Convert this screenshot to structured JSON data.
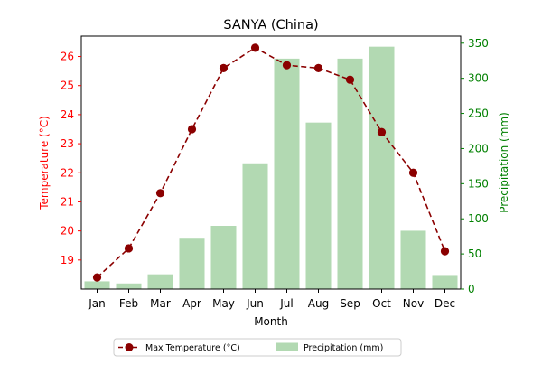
{
  "chart_data": {
    "type": "bar+line",
    "title": "SANYA (China)",
    "xlabel": "Month",
    "categories": [
      "Jan",
      "Feb",
      "Mar",
      "Apr",
      "May",
      "Jun",
      "Jul",
      "Aug",
      "Sep",
      "Oct",
      "Nov",
      "Dec"
    ],
    "y_left": {
      "label": "Temperature (°C)",
      "color": "#ff0000",
      "range": [
        18.0,
        26.7
      ],
      "ticks": [
        19,
        20,
        21,
        22,
        23,
        24,
        25,
        26
      ]
    },
    "y_right": {
      "label": "Precipitation (mm)",
      "color": "#008000",
      "range": [
        0,
        360
      ],
      "ticks": [
        0,
        50,
        100,
        150,
        200,
        250,
        300,
        350
      ]
    },
    "series": [
      {
        "name": "Max Temperature (°C)",
        "type": "line",
        "axis": "left",
        "color": "#8b0000",
        "style": "dashed",
        "marker": "circle",
        "values": [
          18.4,
          19.4,
          21.3,
          23.5,
          25.6,
          26.3,
          25.7,
          25.6,
          25.2,
          23.4,
          22.0,
          19.3
        ]
      },
      {
        "name": "Precipitation (mm)",
        "type": "bar",
        "axis": "right",
        "color": "#b2d9b2",
        "values": [
          11,
          8,
          21,
          73,
          90,
          179,
          328,
          237,
          328,
          345,
          83,
          20
        ]
      }
    ],
    "legend": {
      "placement": "bottom-center",
      "columns": 2
    },
    "grid": false
  }
}
